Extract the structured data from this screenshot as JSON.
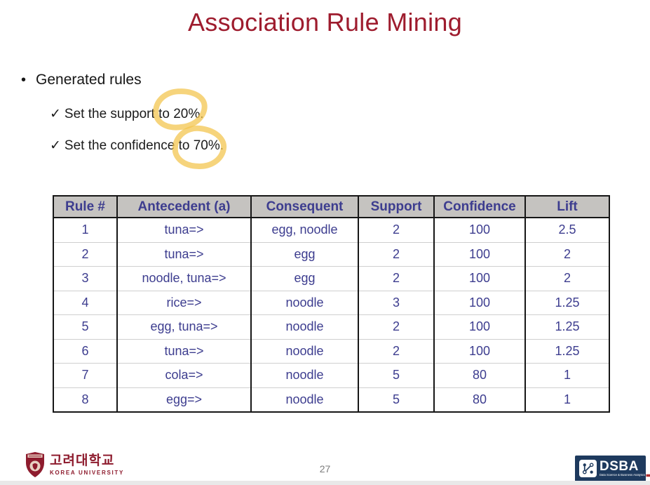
{
  "slide": {
    "title": "Association Rule Mining",
    "page_number": "27"
  },
  "content": {
    "bullet_icon": "•",
    "bullet_text": "Generated rules",
    "check_icon": "✓",
    "check_items": [
      {
        "prefix": "Set the support ",
        "highlighted": "to 20%."
      },
      {
        "prefix": "Set the confidence ",
        "highlighted": "to 70%."
      }
    ],
    "highlight_color": "#f3c44a"
  },
  "table": {
    "headers": [
      "Rule #",
      "Antecedent (a)",
      "Consequent",
      "Support",
      "Confidence",
      "Lift"
    ],
    "rows": [
      [
        "1",
        "tuna=>",
        "egg, noodle",
        "2",
        "100",
        "2.5"
      ],
      [
        "2",
        "tuna=>",
        "egg",
        "2",
        "100",
        "2"
      ],
      [
        "3",
        "noodle, tuna=>",
        "egg",
        "2",
        "100",
        "2"
      ],
      [
        "4",
        "rice=>",
        "noodle",
        "3",
        "100",
        "1.25"
      ],
      [
        "5",
        "egg, tuna=>",
        "noodle",
        "2",
        "100",
        "1.25"
      ],
      [
        "6",
        "tuna=>",
        "noodle",
        "2",
        "100",
        "1.25"
      ],
      [
        "7",
        "cola=>",
        "noodle",
        "5",
        "80",
        "1"
      ],
      [
        "8",
        "egg=>",
        "noodle",
        "5",
        "80",
        "1"
      ]
    ],
    "header_bg": "#c5c3c0",
    "text_color": "#3d3d8f",
    "border_color": "#161616"
  },
  "footer": {
    "university": {
      "korean_name": "고려대학교",
      "english_name": "KOREA UNIVERSITY",
      "brand_color": "#8e1c2e"
    },
    "dsba": {
      "acronym": "DSBA",
      "tagline": "Data Science & Business Analytics",
      "bg_color": "#1e3a5e"
    }
  },
  "colors": {
    "title": "#9e1c2e"
  }
}
